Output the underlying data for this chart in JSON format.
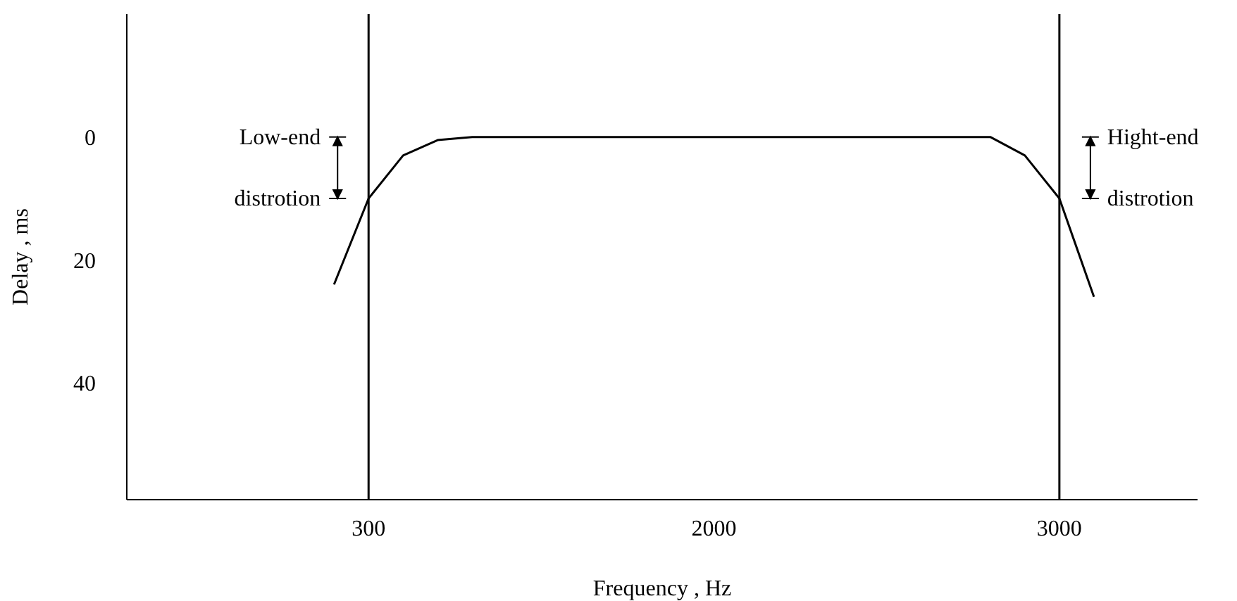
{
  "chart_data": {
    "type": "line",
    "xlabel": "Frequency , Hz",
    "ylabel": "Delay , ms",
    "categories": [
      null,
      null,
      null,
      null,
      null,
      null,
      null,
      "300",
      null,
      null,
      null,
      null,
      null,
      null,
      null,
      null,
      null,
      "2000",
      null,
      null,
      null,
      null,
      null,
      null,
      null,
      null,
      null,
      "3000",
      null,
      null,
      null,
      null
    ],
    "series": [
      {
        "color": "#000000",
        "values": [
          null,
          null,
          null,
          null,
          null,
          null,
          24,
          10,
          3,
          0.5,
          0,
          0,
          0,
          0,
          0,
          0,
          0,
          0,
          0,
          0,
          0,
          0,
          0,
          0,
          0,
          0,
          3,
          10,
          26,
          null,
          null,
          null
        ]
      }
    ],
    "ylim": [
      59,
      -20
    ],
    "yticks": [
      0,
      20,
      40
    ],
    "grid": false,
    "legend": false,
    "marker": "none",
    "line_style": "solid",
    "ref_lines": [
      {
        "axis": "x",
        "value": "300"
      },
      {
        "axis": "x",
        "value": "3000"
      }
    ],
    "annotations": [
      "Low-end distrotion",
      "Hight-end distrotion"
    ]
  }
}
